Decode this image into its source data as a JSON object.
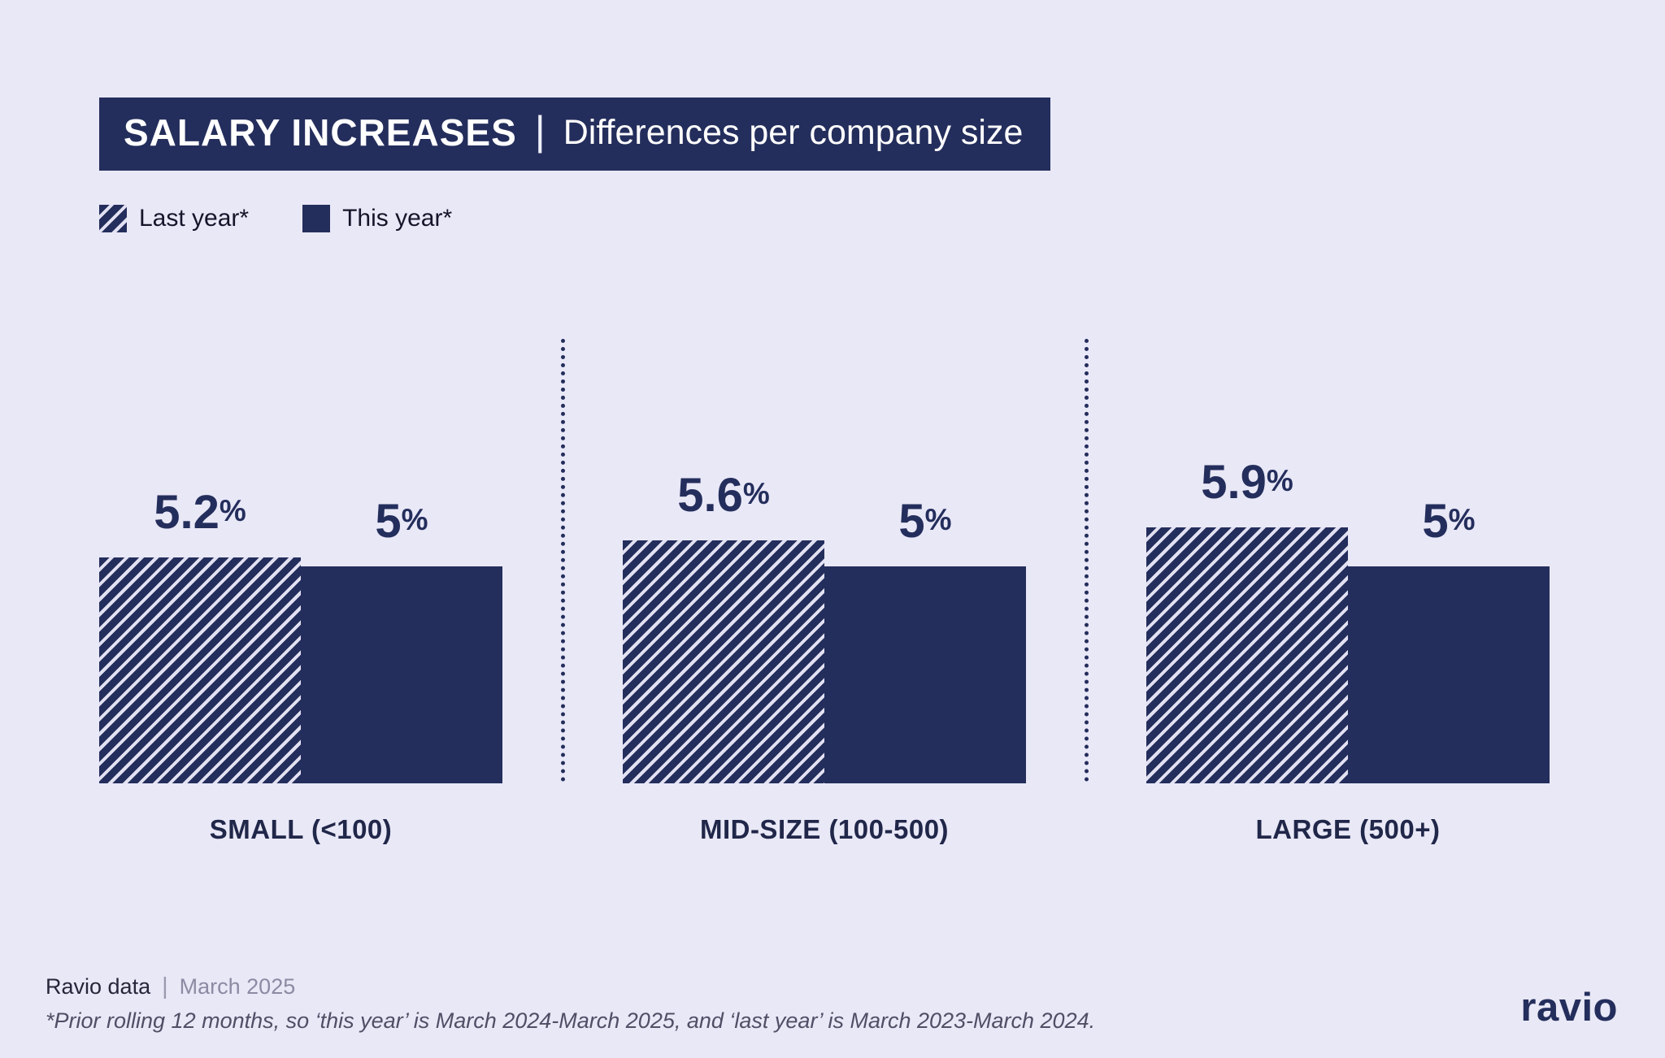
{
  "colors": {
    "navy": "#242e5c",
    "background": "#e9e8f7",
    "stripe": "#e2e1f2"
  },
  "header": {
    "title_bold": "SALARY INCREASES",
    "divider": "|",
    "title_rest": "Differences per company size"
  },
  "legend": [
    {
      "label": "Last year*"
    },
    {
      "label": "This year*"
    }
  ],
  "unit": "%",
  "groups": [
    {
      "label": "SMALL (<100)",
      "last_value": "5.2",
      "this_value": "5"
    },
    {
      "label": "MID-SIZE (100-500)",
      "last_value": "5.6",
      "this_value": "5"
    },
    {
      "label": "LARGE (500+)",
      "last_value": "5.9",
      "this_value": "5"
    }
  ],
  "chart_data": {
    "type": "bar",
    "title": "SALARY INCREASES | Differences per company size",
    "categories": [
      "SMALL (<100)",
      "MID-SIZE (100-500)",
      "LARGE (500+)"
    ],
    "series": [
      {
        "name": "Last year*",
        "values": [
          5.2,
          5.6,
          5.9
        ]
      },
      {
        "name": "This year*",
        "values": [
          5.0,
          5.0,
          5.0
        ]
      }
    ],
    "unit": "%",
    "ylim": [
      0,
      6.5
    ],
    "grid": false,
    "legend_position": "top-left"
  },
  "footer": {
    "source": "Ravio data",
    "divider": "|",
    "date": "March 2025",
    "note": "*Prior rolling 12 months, so ‘this year’ is March 2024-March 2025, and ‘last year’ is March 2023-March 2024.",
    "logo": "ravio"
  }
}
